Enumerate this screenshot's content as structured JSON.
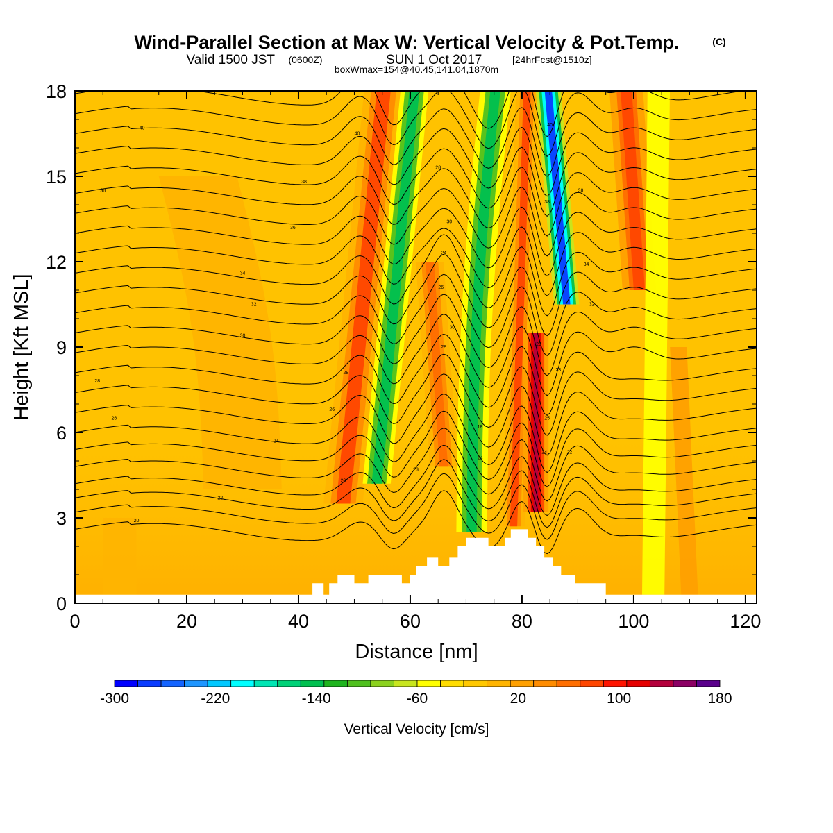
{
  "title": {
    "main": "Wind-Parallel Section at Max W: Vertical Velocity & Pot.Temp.",
    "copyright": "(C)",
    "valid_prefix": "Valid 1500 JST",
    "valid_utc": "(0600Z)",
    "valid_date": "SUN 1 Oct 2017",
    "forecast": "[24hrFcst@1510z]",
    "box_info": "boxWmax=154@40.45,141.04,1870m"
  },
  "chart_data": {
    "type": "heatmap",
    "xlabel": "Distance [nm]",
    "ylabel": "Height [Kft MSL]",
    "xlim": [
      0,
      122
    ],
    "ylim": [
      0,
      18
    ],
    "x_ticks": [
      "0",
      "20",
      "40",
      "60",
      "80",
      "100",
      "120"
    ],
    "y_ticks": [
      "0",
      "3",
      "6",
      "9",
      "12",
      "15",
      "18"
    ],
    "colorbar": {
      "title": "Vertical Velocity [cm/s]",
      "range": [
        -300,
        180
      ],
      "step": 20,
      "labels": [
        "-300",
        "-220",
        "-140",
        "-60",
        "20",
        "100",
        "180"
      ],
      "colors": [
        "#0000ff",
        "#0a3cff",
        "#1464ff",
        "#1e96ff",
        "#00c8ff",
        "#00ffff",
        "#00e6b4",
        "#00d278",
        "#00c050",
        "#1eb41e",
        "#50c01e",
        "#8cd21e",
        "#c8e61e",
        "#ffff00",
        "#ffdc00",
        "#ffc800",
        "#ffb400",
        "#ffa000",
        "#ff8c00",
        "#ff6e00",
        "#ff4600",
        "#ff1400",
        "#e60000",
        "#b4003c",
        "#8c0064",
        "#5a008c"
      ]
    },
    "updrafts": [
      {
        "x": 56.5,
        "peak": 110,
        "note": "updraft band"
      },
      {
        "x": 67,
        "peak": 90,
        "note": "updraft"
      },
      {
        "x": 79.5,
        "peak": 110,
        "note": "updraft"
      },
      {
        "x": 83.5,
        "peak": 154,
        "note": "max updraft"
      },
      {
        "x": 98.5,
        "peak": 105,
        "note": "upper updraft"
      }
    ],
    "downdrafts": [
      {
        "x": 61,
        "peak": -140
      },
      {
        "x": 75.5,
        "peak": -140
      },
      {
        "x": 85.5,
        "peak": -270
      }
    ],
    "potential_temperature_contours": {
      "units": "degC",
      "interval": 1,
      "base_levels_kft": [
        2.5,
        3.1,
        3.6,
        4.1,
        4.7,
        5.3,
        5.9,
        6.6,
        7.3,
        8.0,
        8.7,
        9.4,
        10.1,
        10.8,
        11.5,
        12.2,
        12.9,
        13.6,
        14.3,
        15.0,
        15.7,
        16.4,
        17.1,
        17.8
      ],
      "labels": [
        {
          "x": 11,
          "y": 2.9,
          "text": "20"
        },
        {
          "x": 26,
          "y": 3.7,
          "text": "22"
        },
        {
          "x": 36,
          "y": 5.7,
          "text": "24"
        },
        {
          "x": 48,
          "y": 4.3,
          "text": "20"
        },
        {
          "x": 7,
          "y": 6.5,
          "text": "26"
        },
        {
          "x": 46,
          "y": 6.8,
          "text": "26"
        },
        {
          "x": 4,
          "y": 7.8,
          "text": "28"
        },
        {
          "x": 48.5,
          "y": 8.1,
          "text": "28"
        },
        {
          "x": 30,
          "y": 9.4,
          "text": "30"
        },
        {
          "x": 32,
          "y": 10.5,
          "text": "32"
        },
        {
          "x": 30,
          "y": 11.6,
          "text": "34"
        },
        {
          "x": 39,
          "y": 13.2,
          "text": "36"
        },
        {
          "x": 5,
          "y": 14.5,
          "text": "38"
        },
        {
          "x": 41,
          "y": 14.8,
          "text": "38"
        },
        {
          "x": 12,
          "y": 16.7,
          "text": "40"
        },
        {
          "x": 50.5,
          "y": 16.5,
          "text": "40"
        },
        {
          "x": 65,
          "y": 15.3,
          "text": "28"
        },
        {
          "x": 67,
          "y": 13.4,
          "text": "30"
        },
        {
          "x": 66,
          "y": 12.3,
          "text": "24"
        },
        {
          "x": 65.5,
          "y": 11.1,
          "text": "26"
        },
        {
          "x": 67.5,
          "y": 9.7,
          "text": "30"
        },
        {
          "x": 66,
          "y": 9.0,
          "text": "28"
        },
        {
          "x": 72.5,
          "y": 6.2,
          "text": "18"
        },
        {
          "x": 72.5,
          "y": 5.1,
          "text": "24"
        },
        {
          "x": 61,
          "y": 4.7,
          "text": "23"
        },
        {
          "x": 85,
          "y": 16.8,
          "text": "40"
        },
        {
          "x": 84.5,
          "y": 14.1,
          "text": "38"
        },
        {
          "x": 90.5,
          "y": 14.5,
          "text": "38"
        },
        {
          "x": 91.5,
          "y": 11.9,
          "text": "34"
        },
        {
          "x": 92.5,
          "y": 10.5,
          "text": "32"
        },
        {
          "x": 83,
          "y": 9.1,
          "text": "20"
        },
        {
          "x": 86.5,
          "y": 8.2,
          "text": "23"
        },
        {
          "x": 84.5,
          "y": 6.5,
          "text": "25"
        },
        {
          "x": 84,
          "y": 5.3,
          "text": "24"
        },
        {
          "x": 88.5,
          "y": 5.3,
          "text": "22"
        }
      ]
    },
    "terrain_kft": [
      [
        0,
        0.3
      ],
      [
        42.5,
        0.3
      ],
      [
        42.5,
        0.7
      ],
      [
        44.5,
        0.7
      ],
      [
        44.5,
        0.3
      ],
      [
        45.5,
        0.3
      ],
      [
        45.5,
        0.7
      ],
      [
        47,
        0.7
      ],
      [
        47,
        1.0
      ],
      [
        50,
        1.0
      ],
      [
        50,
        0.7
      ],
      [
        52.5,
        0.7
      ],
      [
        52.5,
        1.0
      ],
      [
        58.5,
        1.0
      ],
      [
        58.5,
        0.7
      ],
      [
        60,
        0.7
      ],
      [
        60,
        1.0
      ],
      [
        61,
        1.0
      ],
      [
        61,
        1.3
      ],
      [
        63,
        1.3
      ],
      [
        63,
        1.6
      ],
      [
        65,
        1.6
      ],
      [
        65,
        1.3
      ],
      [
        67,
        1.3
      ],
      [
        67,
        1.6
      ],
      [
        68.5,
        1.6
      ],
      [
        68.5,
        2.0
      ],
      [
        70,
        2.0
      ],
      [
        70,
        2.3
      ],
      [
        74,
        2.3
      ],
      [
        74,
        2.0
      ],
      [
        77,
        2.0
      ],
      [
        77,
        2.3
      ],
      [
        78,
        2.3
      ],
      [
        78,
        2.6
      ],
      [
        81,
        2.6
      ],
      [
        81,
        2.3
      ],
      [
        82.5,
        2.3
      ],
      [
        82.5,
        2.0
      ],
      [
        84,
        2.0
      ],
      [
        84,
        1.6
      ],
      [
        85.5,
        1.6
      ],
      [
        85.5,
        1.3
      ],
      [
        87,
        1.3
      ],
      [
        87,
        1.0
      ],
      [
        89.5,
        1.0
      ],
      [
        89.5,
        0.7
      ],
      [
        95,
        0.7
      ],
      [
        95,
        0.3
      ],
      [
        122,
        0.3
      ]
    ]
  }
}
